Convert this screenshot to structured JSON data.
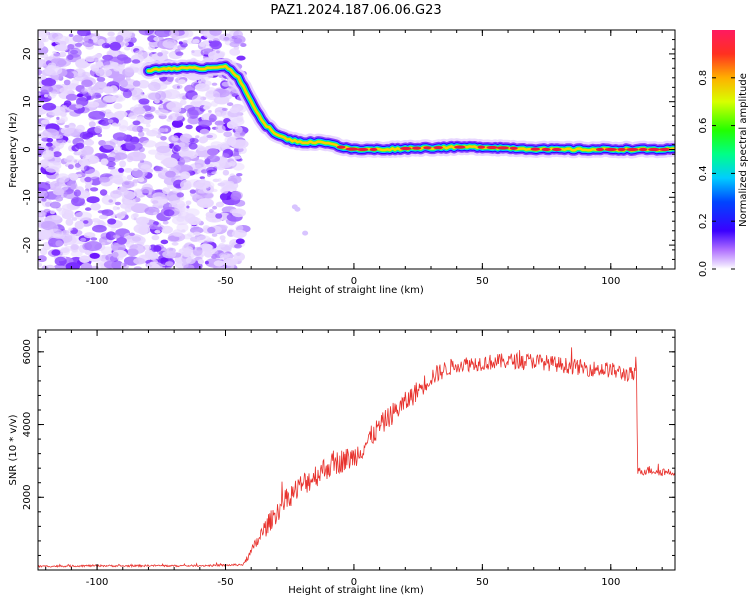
{
  "title": "PAZ1.2024.187.06.06.G23",
  "colors": {
    "snr_line": "#e8322d",
    "ridge_core": "#e81e3c",
    "noise": "#8a2be2",
    "axis": "#000000"
  },
  "chart_data": [
    {
      "type": "heatmap",
      "title": "PAZ1.2024.187.06.06.G23",
      "xlabel": "Height of straight line (km)",
      "ylabel": "Frequency (Hz)",
      "xlim": [
        -123,
        125
      ],
      "ylim": [
        -25,
        25
      ],
      "x_ticks": [
        -100,
        -50,
        0,
        50,
        100
      ],
      "y_ticks": [
        -20,
        -10,
        0,
        10,
        20
      ],
      "colorbar": {
        "label": "Normalized spectral amplitude",
        "range": [
          0,
          1
        ],
        "ticks": [
          "0.0",
          "0.2",
          "0.4",
          "0.6",
          "0.8"
        ],
        "colormap": "gist_rainbow_r"
      },
      "noise_region_x": [
        -123,
        -43
      ],
      "ridge": {
        "x": [
          -80,
          -72,
          -65,
          -58,
          -50,
          -45,
          -40,
          -35,
          -30,
          -25,
          -20,
          -15,
          -10,
          -5,
          0,
          10,
          25,
          40,
          50,
          60,
          75,
          85,
          100,
          110,
          125
        ],
        "y": [
          16.5,
          17,
          17,
          17,
          17.5,
          15,
          10,
          5.5,
          3,
          2,
          1.5,
          1.5,
          1.5,
          0.5,
          0,
          0,
          0.3,
          0.5,
          0.5,
          0.3,
          0,
          0,
          0,
          0,
          0
        ]
      }
    },
    {
      "type": "line",
      "title": "",
      "xlabel": "Height of straight line (km)",
      "ylabel": "SNR (10 * v/v)",
      "xlim": [
        -123,
        125
      ],
      "ylim": [
        0,
        6600
      ],
      "x_ticks": [
        -100,
        -50,
        0,
        50,
        100
      ],
      "y_ticks": [
        2000,
        4000,
        6000
      ],
      "series": [
        {
          "x": [
            -123,
            -110,
            -100,
            -90,
            -80,
            -70,
            -60,
            -50,
            -43,
            -40,
            -35,
            -30,
            -25,
            -20,
            -15,
            -10,
            -5,
            0,
            5,
            10,
            15,
            20,
            25,
            30,
            35,
            40,
            50,
            60,
            70,
            80,
            90,
            100,
            105,
            110,
            110.5,
            115,
            120,
            125
          ],
          "y": [
            100,
            110,
            120,
            110,
            120,
            115,
            120,
            130,
            150,
            500,
            1100,
            1600,
            2050,
            2350,
            2600,
            2850,
            3000,
            3100,
            3500,
            3950,
            4300,
            4600,
            4950,
            5300,
            5500,
            5650,
            5700,
            5750,
            5750,
            5650,
            5550,
            5500,
            5400,
            5350,
            2700,
            2750,
            2700,
            2700
          ],
          "noise_amp": [
            25,
            25,
            25,
            25,
            25,
            25,
            25,
            25,
            30,
            120,
            250,
            300,
            320,
            340,
            340,
            340,
            330,
            320,
            320,
            300,
            300,
            300,
            280,
            260,
            240,
            220,
            220,
            220,
            220,
            220,
            220,
            220,
            220,
            220,
            120,
            120,
            120,
            120
          ]
        }
      ]
    }
  ]
}
